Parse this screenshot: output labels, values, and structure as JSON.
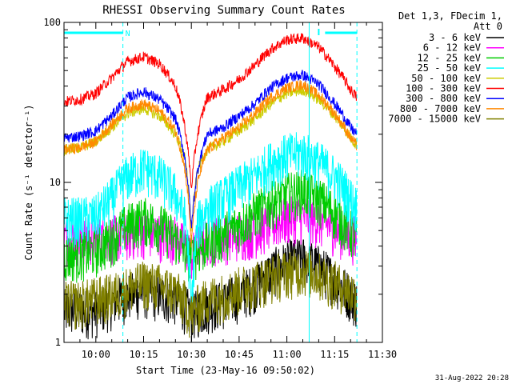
{
  "chart_data": {
    "type": "line",
    "title": "RHESSI Observing Summary Count Rates",
    "xlabel": "Start Time (23-May-16 09:50:02)",
    "ylabel": "Count Rate (s⁻¹ detector⁻¹)",
    "y_scale": "log",
    "ylim": [
      1,
      100
    ],
    "y_tick_labels": [
      "1",
      "10",
      "100"
    ],
    "x_range_minutes": [
      0,
      100
    ],
    "x_ticks": [
      {
        "label": "10:00",
        "minute": 10
      },
      {
        "label": "10:15",
        "minute": 25
      },
      {
        "label": "10:30",
        "minute": 40
      },
      {
        "label": "10:45",
        "minute": 55
      },
      {
        "label": "11:00",
        "minute": 70
      },
      {
        "label": "11:15",
        "minute": 85
      },
      {
        "label": "11:30",
        "minute": 100
      }
    ],
    "legend": {
      "header": [
        "Det 1,3, FDecim 1,",
        "Att 0"
      ],
      "position": "top-right"
    },
    "series": [
      {
        "name": "3 - 6 keV",
        "color": "#000000",
        "x": [
          0,
          5,
          10,
          15,
          20,
          25,
          30,
          35,
          38,
          40,
          42,
          45,
          50,
          55,
          60,
          65,
          70,
          75,
          80,
          85,
          90,
          92
        ],
        "y": [
          1.6,
          1.6,
          1.6,
          1.8,
          2.0,
          2.1,
          2.0,
          1.9,
          1.7,
          1.5,
          1.6,
          1.7,
          1.8,
          2.0,
          2.3,
          2.8,
          3.2,
          3.4,
          3.0,
          2.5,
          2.0,
          1.8
        ]
      },
      {
        "name": "6 - 12 keV",
        "color": "#ff00ff",
        "x": [
          0,
          5,
          10,
          15,
          20,
          25,
          30,
          35,
          38,
          40,
          42,
          45,
          50,
          55,
          60,
          65,
          70,
          75,
          80,
          85,
          90,
          92
        ],
        "y": [
          4.5,
          4.5,
          4.5,
          4.6,
          4.8,
          5.0,
          4.8,
          4.6,
          4.0,
          3.5,
          4.0,
          4.5,
          4.6,
          4.8,
          5.0,
          5.5,
          6.0,
          6.2,
          5.8,
          5.2,
          4.7,
          4.5
        ]
      },
      {
        "name": "12 - 25 keV",
        "color": "#00cc00",
        "x": [
          0,
          5,
          10,
          15,
          20,
          25,
          30,
          35,
          38,
          40,
          42,
          45,
          50,
          55,
          60,
          65,
          70,
          75,
          80,
          85,
          90,
          92
        ],
        "y": [
          3.5,
          3.6,
          3.8,
          4.5,
          5.5,
          6.0,
          5.5,
          4.5,
          3.8,
          3.5,
          3.8,
          4.2,
          4.8,
          5.5,
          6.5,
          7.5,
          8.5,
          9.0,
          8.0,
          6.5,
          5.0,
          4.5
        ]
      },
      {
        "name": "25 - 50 keV",
        "color": "#00ffff",
        "x": [
          0,
          5,
          10,
          15,
          20,
          25,
          30,
          35,
          38,
          40,
          42,
          45,
          50,
          55,
          60,
          65,
          70,
          75,
          80,
          85,
          90,
          92
        ],
        "y": [
          6.0,
          6.0,
          6.2,
          8.0,
          11.0,
          12.5,
          11.0,
          8.5,
          6.0,
          1.5,
          5.5,
          7.0,
          8.0,
          9.5,
          11.0,
          13.5,
          15.0,
          15.5,
          13.5,
          11.0,
          8.0,
          7.0
        ]
      },
      {
        "name": "50 - 100 keV",
        "color": "#cccc00",
        "x": [
          0,
          5,
          10,
          15,
          20,
          25,
          30,
          35,
          38,
          40,
          42,
          45,
          50,
          55,
          60,
          65,
          70,
          75,
          80,
          85,
          90,
          92
        ],
        "y": [
          16.0,
          16.5,
          18.0,
          22.0,
          27.0,
          29.0,
          26.0,
          20.0,
          14.0,
          5.0,
          12.0,
          16.0,
          18.0,
          21.0,
          25.0,
          31.0,
          36.0,
          38.0,
          33.0,
          26.0,
          19.0,
          17.0
        ]
      },
      {
        "name": "100 - 300 keV",
        "color": "#ff0000",
        "x": [
          0,
          5,
          10,
          15,
          20,
          25,
          30,
          35,
          38,
          40,
          42,
          45,
          50,
          55,
          60,
          65,
          70,
          75,
          80,
          85,
          90,
          92
        ],
        "y": [
          32.0,
          33.0,
          36.0,
          45.0,
          57.0,
          61.0,
          55.0,
          40.0,
          22.0,
          9.0,
          20.0,
          34.0,
          38.0,
          44.0,
          54.0,
          68.0,
          78.0,
          80.0,
          70.0,
          53.0,
          38.0,
          34.0
        ]
      },
      {
        "name": "300 - 800 keV",
        "color": "#0000ff",
        "x": [
          0,
          5,
          10,
          15,
          20,
          25,
          30,
          35,
          38,
          40,
          42,
          45,
          50,
          55,
          60,
          65,
          70,
          75,
          80,
          85,
          90,
          92
        ],
        "y": [
          19.0,
          19.5,
          21.0,
          26.0,
          34.0,
          37.0,
          33.0,
          25.0,
          14.0,
          5.0,
          12.0,
          20.0,
          22.0,
          26.0,
          31.0,
          39.0,
          45.0,
          47.0,
          41.0,
          31.0,
          22.0,
          20.0
        ]
      },
      {
        "name": "800 - 7000 keV",
        "color": "#ff8800",
        "x": [
          0,
          5,
          10,
          15,
          20,
          25,
          30,
          35,
          38,
          40,
          42,
          45,
          50,
          55,
          60,
          65,
          70,
          75,
          80,
          85,
          90,
          92
        ],
        "y": [
          16.0,
          16.5,
          18.0,
          23.0,
          29.0,
          31.0,
          28.0,
          21.0,
          12.0,
          4.0,
          10.0,
          16.0,
          19.0,
          22.0,
          27.0,
          34.0,
          39.0,
          41.0,
          35.0,
          27.0,
          19.0,
          17.0
        ]
      },
      {
        "name": "7000 - 15000 keV",
        "color": "#808000",
        "x": [
          0,
          5,
          10,
          15,
          20,
          25,
          30,
          35,
          38,
          40,
          42,
          45,
          50,
          55,
          60,
          65,
          70,
          75,
          80,
          85,
          90,
          92
        ],
        "y": [
          1.8,
          1.8,
          1.9,
          2.0,
          2.2,
          2.4,
          2.3,
          2.1,
          1.8,
          1.5,
          1.7,
          1.9,
          2.0,
          2.2,
          2.4,
          2.6,
          2.8,
          2.9,
          2.7,
          2.4,
          2.1,
          2.0
        ]
      }
    ],
    "annotations": {
      "flag_label": "N",
      "flag_segments_minutes": [
        [
          0,
          18.5
        ],
        [
          82,
          92
        ]
      ],
      "flag_color": "#00ffff",
      "dashed_vertical_minutes": [
        0,
        18.5,
        92
      ],
      "solid_vertical_minutes": [
        77
      ],
      "l_marker_minute": 80
    }
  },
  "footer": {
    "timestamp": "31-Aug-2022 20:28"
  }
}
